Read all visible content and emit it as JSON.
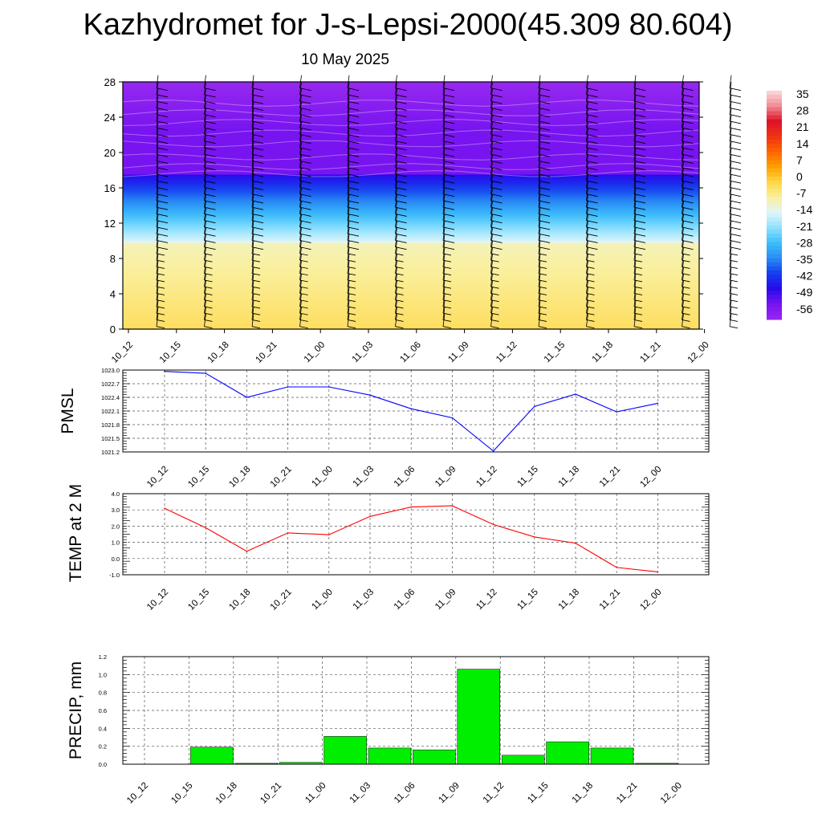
{
  "title": "Kazhydromet for J-s-Lepsi-2000(45.309 80.604)",
  "subtitle": "10 May 2025",
  "time_labels": [
    "10_12",
    "10_15",
    "10_18",
    "10_21",
    "11_00",
    "11_03",
    "11_06",
    "11_09",
    "11_12",
    "11_15",
    "11_18",
    "11_21",
    "12_00"
  ],
  "colorbar": {
    "labels": [
      "35",
      "28",
      "21",
      "14",
      "7",
      "0",
      "-7",
      "-14",
      "-21",
      "-28",
      "-35",
      "-42",
      "-49",
      "-56"
    ]
  },
  "chart_data": [
    {
      "type": "heatmap",
      "title": "",
      "y_ticks": [
        0,
        4,
        8,
        12,
        16,
        20,
        24,
        28
      ],
      "ylim": [
        0,
        28
      ],
      "color_range": [
        -63,
        42
      ],
      "description_of_field": "temperature-like field with wind barbs by height",
      "layers": [
        {
          "y0": 0,
          "y1": 9.8,
          "values": [
            -2,
            -9
          ]
        },
        {
          "y0": 9.8,
          "y1": 17.5,
          "values": [
            -14,
            -49
          ]
        },
        {
          "y0": 17.5,
          "y1": 22.5,
          "values": [
            -56,
            -56
          ]
        },
        {
          "y0": 22.5,
          "y1": 28,
          "values": [
            -56,
            -63
          ]
        }
      ]
    },
    {
      "type": "line",
      "ylabel": "PMSL",
      "ylim": [
        1021.2,
        1023.0
      ],
      "y_ticks": [
        "1023.0",
        "1022.7",
        "1022.4",
        "1022.1",
        "1021.8",
        "1021.5",
        "1021.2"
      ],
      "series": [
        {
          "color": "#0000ff",
          "values": [
            1022.97,
            1022.93,
            1022.4,
            1022.63,
            1022.63,
            1022.45,
            1022.15,
            1021.95,
            1021.22,
            1022.2,
            1022.47,
            1022.08,
            1022.27
          ]
        }
      ]
    },
    {
      "type": "line",
      "ylabel": "TEMP at 2 M",
      "ylim": [
        -1.0,
        4.0
      ],
      "y_ticks": [
        "4.0",
        "3.0",
        "2.0",
        "1.0",
        "0.0",
        "-1.0"
      ],
      "series": [
        {
          "color": "#ff0000",
          "values": [
            3.1,
            1.9,
            0.45,
            1.58,
            1.47,
            2.6,
            3.18,
            3.25,
            2.1,
            1.33,
            0.95,
            -0.55,
            -0.82
          ]
        }
      ]
    },
    {
      "type": "bar",
      "ylabel": "PRECIP, mm",
      "ylim": [
        0.0,
        1.2
      ],
      "y_ticks": [
        "1.2",
        "1.0",
        "0.8",
        "0.6",
        "0.4",
        "0.2",
        "0.0"
      ],
      "values": [
        0.0,
        0.19,
        0.01,
        0.02,
        0.31,
        0.18,
        0.16,
        1.06,
        0.1,
        0.25,
        0.18,
        0.01,
        0.0
      ],
      "bar_color": "#00ee00"
    }
  ]
}
